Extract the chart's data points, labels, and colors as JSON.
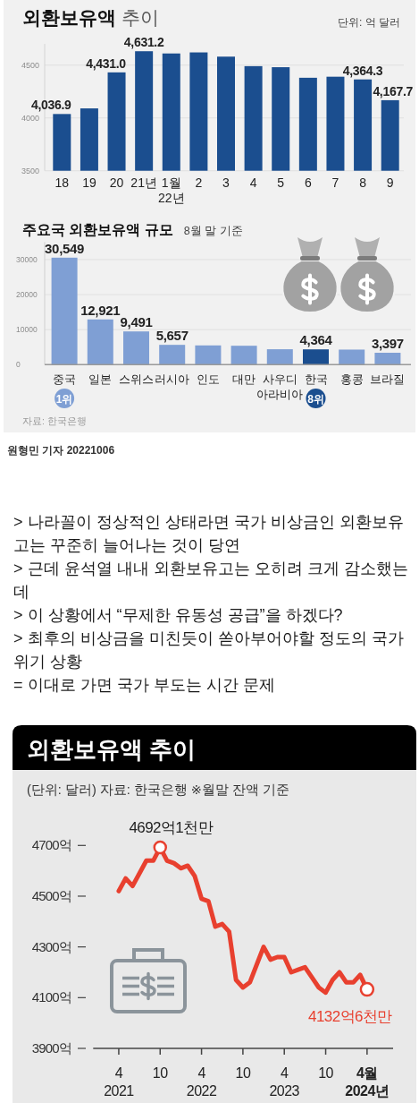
{
  "chart_data": [
    {
      "type": "bar",
      "title": "외환보유액 추이",
      "subtitle": "단위: 억 달러",
      "categories": [
        "18",
        "19",
        "20",
        "21년",
        "1월\n22년",
        "2",
        "3",
        "4",
        "5",
        "6",
        "7",
        "8",
        "9"
      ],
      "values": [
        4036.9,
        4090,
        4431.0,
        4631.2,
        4610,
        4620,
        4580,
        4490,
        4480,
        4380,
        4390,
        4364.3,
        4167.7
      ],
      "value_labels": [
        "4,036.9",
        null,
        "4,431.0",
        "4,631.2",
        null,
        null,
        null,
        null,
        null,
        null,
        null,
        "4,364.3",
        "4,167.7"
      ],
      "color": "#1b4e8f",
      "ylim": [
        3500,
        4700
      ],
      "yticks": [
        3500,
        4000,
        4500
      ],
      "grid": "y"
    },
    {
      "type": "bar",
      "title": "주요국 외환보유액 규모",
      "subtitle": "8월 말 기준",
      "categories": [
        "중국",
        "일본",
        "스위스",
        "러시아",
        "인도",
        "대만",
        "사우디\n아라비아",
        "한국",
        "홍콩",
        "브라질"
      ],
      "values": [
        30549,
        12921,
        9491,
        5657,
        5500,
        5400,
        4400,
        4364,
        4300,
        3397
      ],
      "value_labels": [
        "30,549",
        "12,921",
        "9,491",
        "5,657",
        null,
        null,
        null,
        "4,364",
        null,
        "3,397"
      ],
      "colors": [
        "#7f9fd4",
        "#7f9fd4",
        "#7f9fd4",
        "#7f9fd4",
        "#7f9fd4",
        "#7f9fd4",
        "#7f9fd4",
        "#1b4e8f",
        "#7f9fd4",
        "#7f9fd4"
      ],
      "ylim": [
        0,
        35000
      ],
      "yticks": [
        0,
        10000,
        20000,
        30000
      ],
      "grid": "y",
      "annotations": [
        "1위",
        "8위",
        "자료: 한국은행",
        "원형민 기자 20221006"
      ]
    },
    {
      "type": "other",
      "annotations": [
        "> 나라꼴이 정상적인 상태라면 국가 비상금인 외환보유고는 꾸준히 늘어나는 것이 당연",
        "> 근데 윤석열 내내 외환보유고는 오히려 크게 감소했는데",
        "> 이 상황에서 “무제한 유동성 공급”을 하겠다?",
        "> 최후의 비상금을 미친듯이 쏟아부어야할 정도의 국가 위기 상황",
        "= 이대로 가면 국가 부도는 시간 문제"
      ]
    },
    {
      "type": "line",
      "title": "외환보유액 추이",
      "subtitle": "(단위: 달러) 자료: 한국은행 ※월말 잔액 기준",
      "x": [
        "2021-04",
        "2021-05",
        "2021-06",
        "2021-07",
        "2021-08",
        "2021-09",
        "2021-10",
        "2021-11",
        "2021-12",
        "2022-01",
        "2022-02",
        "2022-03",
        "2022-04",
        "2022-05",
        "2022-06",
        "2022-07",
        "2022-08",
        "2022-09",
        "2022-10",
        "2022-11",
        "2022-12",
        "2023-01",
        "2023-02",
        "2023-03",
        "2023-04",
        "2023-05",
        "2023-06",
        "2023-07",
        "2023-08",
        "2023-09",
        "2023-10",
        "2023-11",
        "2023-12",
        "2024-01",
        "2024-02",
        "2024-03",
        "2024-04"
      ],
      "series": [
        {
          "color": "#e8402f",
          "values": [
            4520,
            4570,
            4540,
            4590,
            4640,
            4640,
            4692.1,
            4640,
            4630,
            4610,
            4620,
            4580,
            4490,
            4480,
            4380,
            4390,
            4360,
            4170,
            4140,
            4160,
            4230,
            4300,
            4250,
            4260,
            4260,
            4200,
            4210,
            4220,
            4180,
            4140,
            4120,
            4170,
            4200,
            4160,
            4160,
            4190,
            4132.6
          ]
        }
      ],
      "xlim": [
        "2020-12-10",
        "2024-07-25"
      ],
      "xticks": [
        {
          "value": "2021-04",
          "label": "4\n2021"
        },
        {
          "value": "2021-10",
          "label": "10"
        },
        {
          "value": "2022-04",
          "label": "4\n2022"
        },
        {
          "value": "2022-10",
          "label": "10"
        },
        {
          "value": "2023-04",
          "label": "4\n2023"
        },
        {
          "value": "2023-10",
          "label": "10"
        },
        {
          "value": "2024-04",
          "label": "4월\n2024년"
        }
      ],
      "ylim": [
        3900,
        4700
      ],
      "yticks": [
        {
          "value": 3900,
          "label": "3900억"
        },
        {
          "value": 4100,
          "label": "4100억"
        },
        {
          "value": 4300,
          "label": "4300억"
        },
        {
          "value": 4500,
          "label": "4500억"
        },
        {
          "value": 4700,
          "label": "4700억"
        }
      ],
      "annotations": [
        {
          "text": "4692억1천만",
          "x": "2021-10",
          "y": 4692.1
        },
        {
          "text": "4132억6천만",
          "x": "2024-04",
          "y": 4132.6
        }
      ]
    }
  ]
}
